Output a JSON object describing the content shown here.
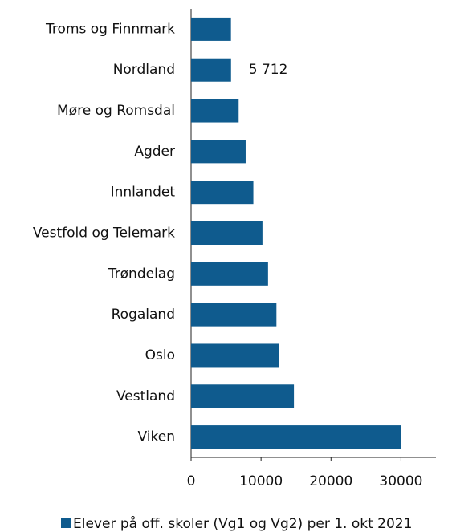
{
  "chart_data": {
    "type": "barh",
    "categories": [
      "Troms og Finnmark",
      "Nordland",
      "Møre og Romsdal",
      "Agder",
      "Innlandet",
      "Vestfold og Telemark",
      "Trøndelag",
      "Rogaland",
      "Oslo",
      "Vestland",
      "Viken"
    ],
    "series": [
      {
        "name": "Elever på off. skoler (Vg1 og Vg2) per 1. okt 2021",
        "color": "#0f5b8e",
        "values": [
          5700,
          5712,
          6800,
          7800,
          8900,
          10200,
          11000,
          12200,
          12600,
          14700,
          30000
        ],
        "value_labels": [
          null,
          "5 712",
          null,
          null,
          null,
          null,
          null,
          null,
          null,
          null,
          null
        ]
      }
    ],
    "xlim": [
      0,
      35000
    ],
    "xticks": [
      0,
      10000,
      20000,
      30000
    ],
    "legend": "bottom"
  }
}
